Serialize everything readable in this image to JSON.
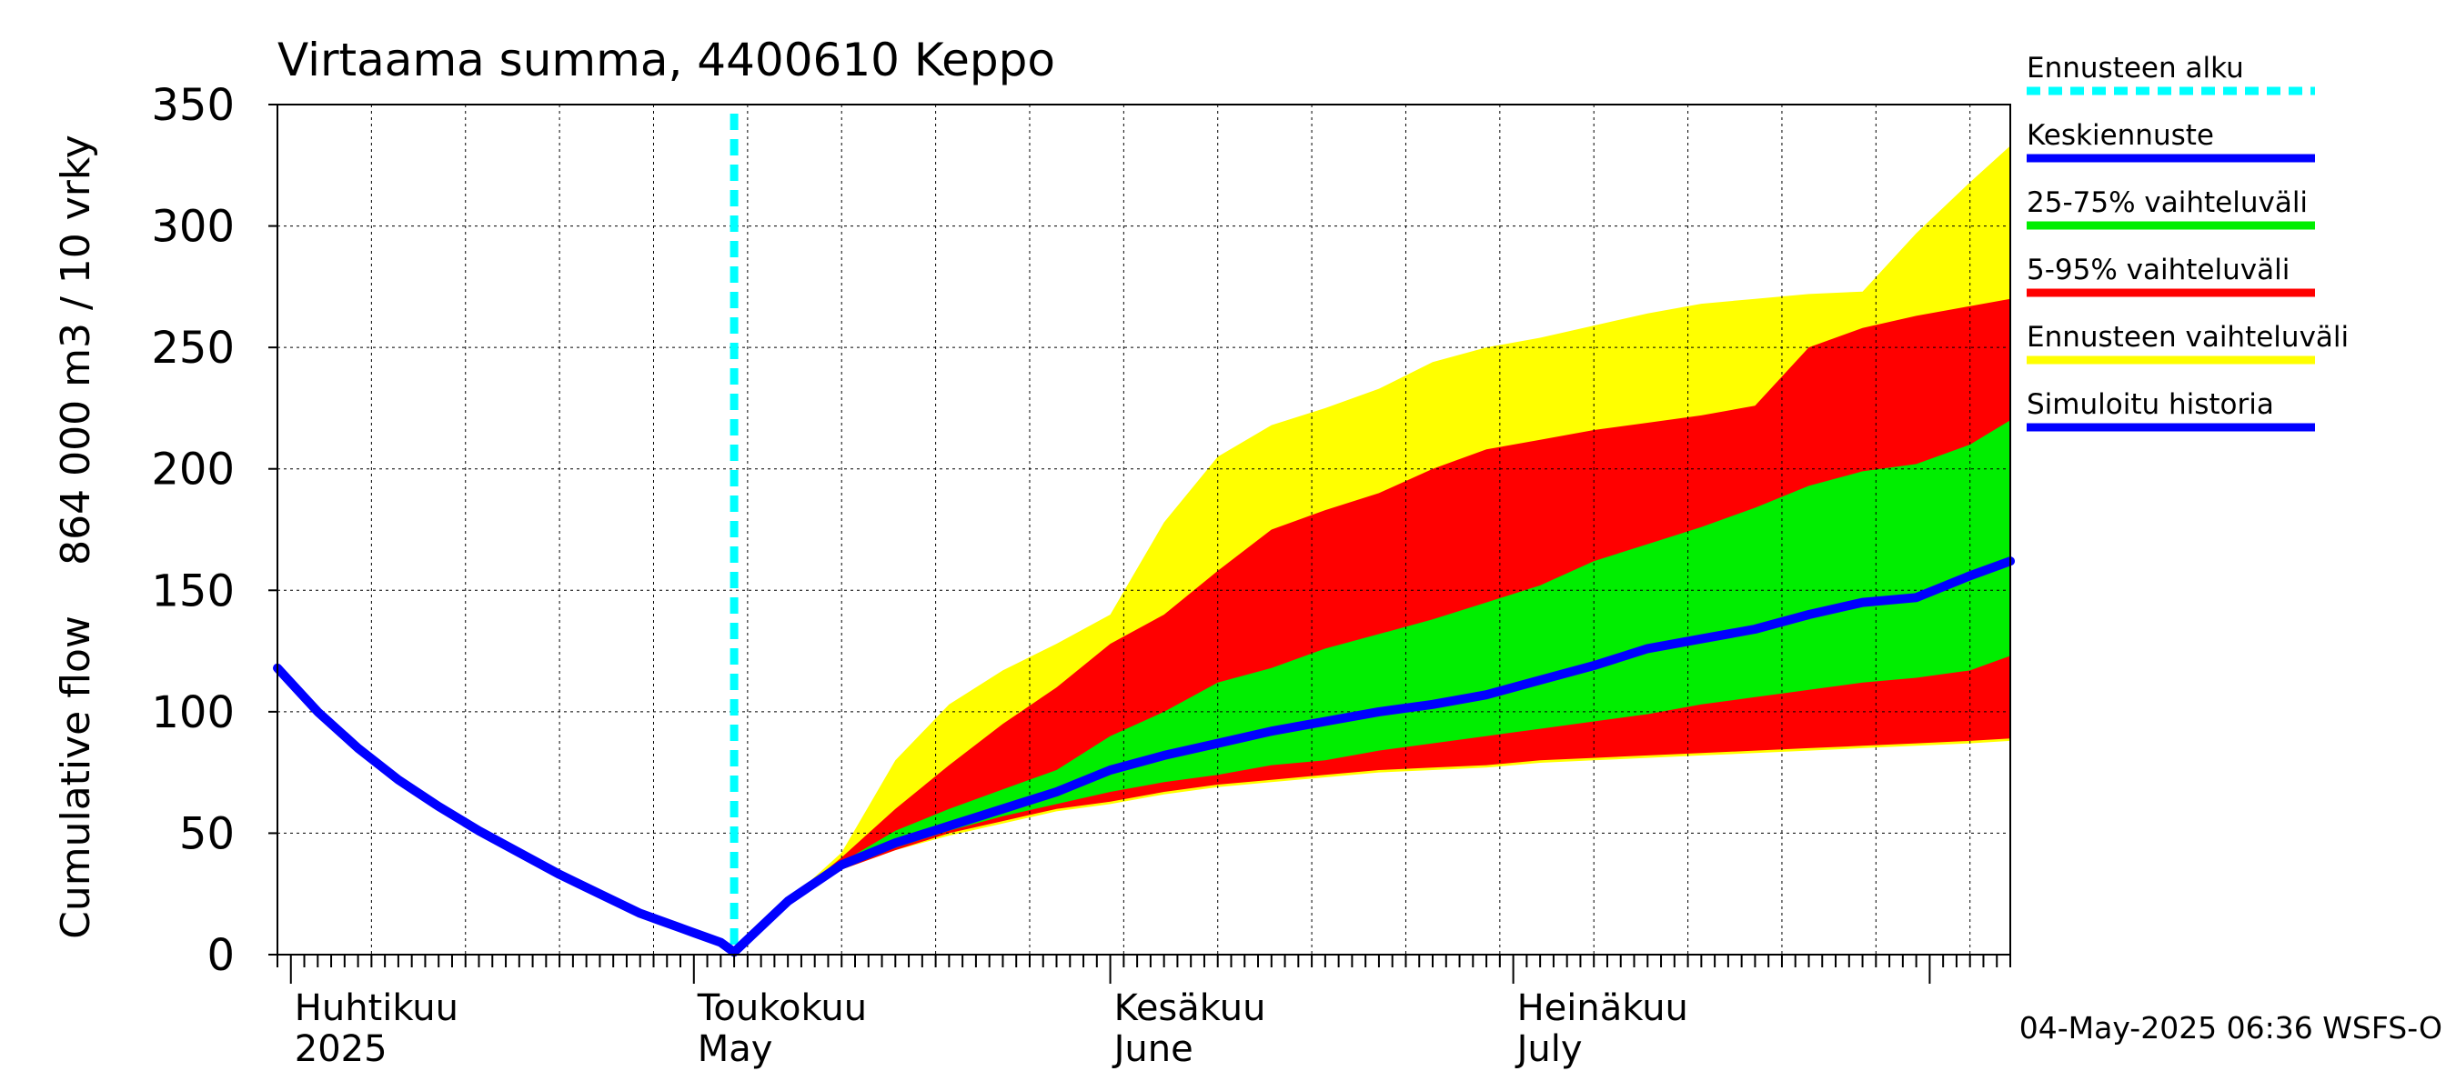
{
  "chart_data": {
    "type": "area",
    "title": "Virtaama summa, 4400610 Keppo",
    "ylabel_line1": "Cumulative flow",
    "ylabel_line2": "864 000 m3 / 10 vrky",
    "ylim": [
      0,
      350
    ],
    "yticks": [
      0,
      50,
      100,
      150,
      200,
      250,
      300,
      350
    ],
    "xlim": [
      "2025-03-31",
      "2025-08-07"
    ],
    "grid": true,
    "legend_position": "right",
    "forecast_start": "2025-05-04",
    "month_labels": [
      {
        "date": "2025-04-01",
        "fi": "Huhtikuu",
        "en": "2025"
      },
      {
        "date": "2025-05-01",
        "fi": "Toukokuu",
        "en": "May"
      },
      {
        "date": "2025-06-01",
        "fi": "Kesäkuu",
        "en": "June"
      },
      {
        "date": "2025-07-01",
        "fi": "Heinäkuu",
        "en": "July"
      }
    ],
    "timestamp": "04-May-2025 06:36 WSFS-O",
    "legend": [
      {
        "label": "Ennusteen alku",
        "color": "#00ffff",
        "style": "dashed"
      },
      {
        "label": "Keskiennuste",
        "color": "#0000ff",
        "style": "solid"
      },
      {
        "label": "25-75% vaihteluväli",
        "color": "#00ee00",
        "style": "solid"
      },
      {
        "label": "5-95% vaihteluväli",
        "color": "#ff0000",
        "style": "solid"
      },
      {
        "label": "Ennusteen vaihteluväli",
        "color": "#ffff00",
        "style": "solid"
      },
      {
        "label": "Simuloitu historia",
        "color": "#0000ff",
        "style": "solid"
      }
    ],
    "colors": {
      "history": "#0000ff",
      "median": "#0000ff",
      "p25_75": "#00ee00",
      "p5_95": "#ff0000",
      "range": "#ffff00",
      "forecast_start": "#00ffff"
    },
    "simulated_history": {
      "x": [
        "2025-03-31",
        "2025-04-03",
        "2025-04-06",
        "2025-04-09",
        "2025-04-12",
        "2025-04-15",
        "2025-04-18",
        "2025-04-21",
        "2025-04-24",
        "2025-04-27",
        "2025-04-30",
        "2025-05-03",
        "2025-05-04"
      ],
      "y": [
        118,
        100,
        85,
        72,
        61,
        51,
        42,
        33,
        25,
        17,
        11,
        5,
        1
      ]
    },
    "forecast": {
      "x": [
        "2025-05-04",
        "2025-05-08",
        "2025-05-12",
        "2025-05-16",
        "2025-05-20",
        "2025-05-24",
        "2025-05-28",
        "2025-06-01",
        "2025-06-05",
        "2025-06-09",
        "2025-06-13",
        "2025-06-17",
        "2025-06-21",
        "2025-06-25",
        "2025-06-29",
        "2025-07-03",
        "2025-07-07",
        "2025-07-11",
        "2025-07-15",
        "2025-07-19",
        "2025-07-23",
        "2025-07-27",
        "2025-07-31",
        "2025-08-04",
        "2025-08-07"
      ],
      "median": [
        1,
        22,
        37,
        46,
        53,
        60,
        67,
        76,
        82,
        87,
        92,
        96,
        100,
        103,
        107,
        113,
        119,
        126,
        130,
        134,
        140,
        145,
        147,
        156,
        162
      ],
      "p25": [
        1,
        22,
        35,
        44,
        51,
        57,
        62,
        67,
        71,
        74,
        78,
        80,
        84,
        87,
        90,
        93,
        96,
        99,
        103,
        106,
        109,
        112,
        114,
        117,
        123
      ],
      "p75": [
        1,
        22,
        38,
        51,
        60,
        68,
        76,
        90,
        100,
        112,
        118,
        126,
        132,
        138,
        145,
        152,
        162,
        169,
        176,
        184,
        193,
        199,
        202,
        210,
        220
      ],
      "p5": [
        1,
        22,
        35,
        43,
        50,
        55,
        60,
        63,
        67,
        70,
        72,
        74,
        76,
        77,
        78,
        80,
        81,
        82,
        83,
        84,
        85,
        86,
        87,
        88,
        89
      ],
      "p95": [
        1,
        22,
        40,
        60,
        78,
        95,
        110,
        128,
        140,
        158,
        175,
        183,
        190,
        200,
        208,
        212,
        216,
        219,
        222,
        226,
        250,
        258,
        263,
        267,
        270
      ],
      "min": [
        1,
        22,
        35,
        43,
        49,
        54,
        59,
        62,
        66,
        69,
        71,
        73,
        75,
        76,
        77,
        79,
        80,
        81,
        82,
        83,
        84,
        85,
        86,
        87,
        88
      ],
      "max": [
        1,
        22,
        42,
        80,
        103,
        117,
        128,
        140,
        178,
        205,
        218,
        225,
        233,
        244,
        250,
        254,
        259,
        264,
        268,
        270,
        272,
        273,
        297,
        318,
        333
      ]
    }
  }
}
